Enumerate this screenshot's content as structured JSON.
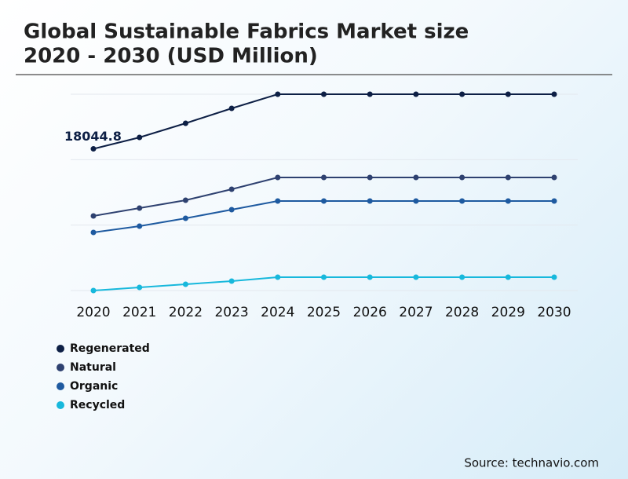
{
  "chart_data": {
    "type": "line",
    "title": [
      "Global Sustainable Fabrics Market size",
      "2020 - 2030 (USD Million)"
    ],
    "categories": [
      "2020",
      "2021",
      "2022",
      "2023",
      "2024",
      "2025",
      "2026",
      "2027",
      "2028",
      "2029",
      "2030"
    ],
    "series": [
      {
        "name": "Regenerated",
        "color": "#0d1f45",
        "values": [
          18044.8,
          19500,
          21300,
          23200,
          25000,
          25000,
          25000,
          25000,
          25000,
          25000,
          25000
        ]
      },
      {
        "name": "Natural",
        "color": "#2e4170",
        "values": [
          9500,
          10500,
          11500,
          12900,
          14400,
          14400,
          14400,
          14400,
          14400,
          14400,
          14400
        ]
      },
      {
        "name": "Organic",
        "color": "#1e5aa0",
        "values": [
          7400,
          8200,
          9200,
          10300,
          11400,
          11400,
          11400,
          11400,
          11400,
          11400,
          11400
        ]
      },
      {
        "name": "Recycled",
        "color": "#17b8dc",
        "values": [
          0,
          400,
          800,
          1200,
          1700,
          1700,
          1700,
          1700,
          1700,
          1700,
          1700
        ]
      }
    ],
    "ylim": [
      0,
      25000
    ],
    "source": "Source: technavio.com"
  }
}
